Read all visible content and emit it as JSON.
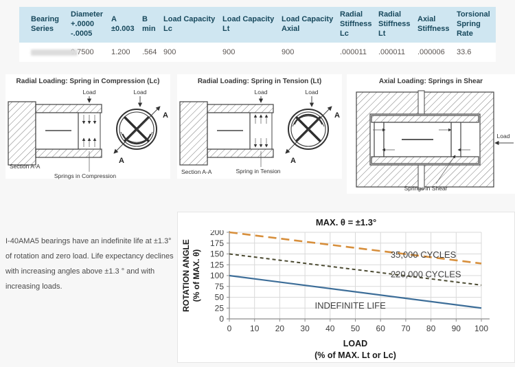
{
  "colors": {
    "page_bg": "#f7f7f7",
    "table_header_bg": "#cfe6f1",
    "table_header_fg": "#17485c",
    "series_35k": "#d78f3c",
    "series_220k": "#4b4a31",
    "series_indefinite": "#3c6d98"
  },
  "table": {
    "headers": [
      "Bearing Series",
      "Diameter\n+.0000\n-.0005",
      "A\n±0.003",
      "B\nmin",
      "Load Capacity\nLc",
      "Load Capacity\nLt",
      "Load Capacity\nAxial",
      "Radial\nStiffness\nLc",
      "Radial\nStiffness\nLt",
      "Axial\nStiffness",
      "Torsional\nSpring\nRate"
    ],
    "row": [
      "",
      "0.7500",
      "1.200",
      ".564",
      "900",
      "900",
      "900",
      ".000011",
      ".000011",
      ".000006",
      "33.6"
    ]
  },
  "diagrams": {
    "compression": {
      "title": "Radial Loading: Spring in Compression (Lc)",
      "load1": "Load",
      "load2": "Load",
      "section": "Section A-A",
      "springs": "Springs in Compression",
      "a_top": "A",
      "a_bottom": "A"
    },
    "tension": {
      "title": "Radial Loading: Spring in Tension (Lt)",
      "load1": "Load",
      "load2": "Load",
      "section": "Section A-A",
      "springs": "Spring in Tension",
      "a_top": "A",
      "a_bottom": "A"
    },
    "shear": {
      "title": "Axial Loading: Springs in Shear",
      "load": "Load",
      "springs": "Springs in Shear"
    }
  },
  "note": "I-40AMA5  bearings have an indefinite life at ±1.3° of rotation and zero load.  Life expectancy declines with increasing angles above ±1.3 ° and with increasing loads.",
  "chart_data": {
    "type": "line",
    "title": "MAX. θ = ±1.3°",
    "xlabel": "LOAD",
    "xlabel2": "(% of MAX. Lt or Lc)",
    "ylabel": "ROTATION ANGLE",
    "ylabel2": "(% of MAX. θ)",
    "xlim": [
      0,
      100
    ],
    "ylim": [
      0,
      200
    ],
    "xtick_step": 10,
    "ytick_step": 25,
    "grid": true,
    "legend_position": "inline-labels",
    "series": [
      {
        "name": "35,000 CYCLES",
        "x": [
          0,
          100
        ],
        "values": [
          200,
          128
        ],
        "color": "#d78f3c",
        "dash": "12,7",
        "width": 2.6,
        "label_x": 77,
        "label_y": 141
      },
      {
        "name": "220,000 CYCLES",
        "x": [
          0,
          100
        ],
        "values": [
          150,
          78
        ],
        "color": "#4b4a31",
        "dash": "5,4",
        "width": 2.0,
        "label_x": 78,
        "label_y": 96
      },
      {
        "name": "INDEFINITE LIFE",
        "x": [
          0,
          100
        ],
        "values": [
          100,
          25
        ],
        "color": "#3c6d98",
        "dash": null,
        "width": 2.2,
        "label_x": 48,
        "label_y": 24
      }
    ]
  }
}
